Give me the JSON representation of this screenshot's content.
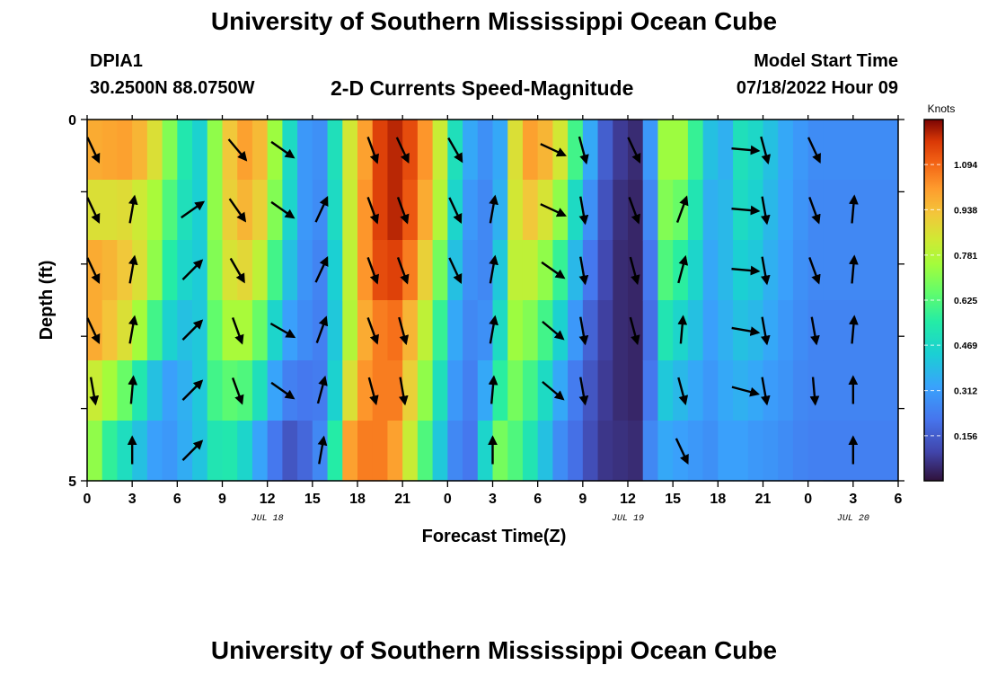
{
  "header": {
    "title": "University of Southern Mississippi Ocean Cube",
    "station": "DPIA1",
    "coords": "30.2500N  88.0750W",
    "subtitle": "2-D Currents Speed-Magnitude",
    "model_start_label": "Model Start Time",
    "model_start_value": "07/18/2022 Hour 09"
  },
  "footer": {
    "title": "University of Southern Mississippi Ocean Cube"
  },
  "chart_data": {
    "type": "heatmap",
    "title": "2-D Currents Speed-Magnitude",
    "xlabel": "Forecast Time(Z)",
    "ylabel": "Depth (ft)",
    "x_tick_labels": [
      "0",
      "3",
      "6",
      "9",
      "12",
      "15",
      "18",
      "21",
      "0",
      "3",
      "6",
      "9",
      "12",
      "15",
      "18",
      "21",
      "0",
      "3",
      "6"
    ],
    "date_labels": [
      {
        "text": "JUL 18",
        "at_tick": 4
      },
      {
        "text": "JUL 19",
        "at_tick": 12
      },
      {
        "text": "JUL 20",
        "at_tick": 17
      }
    ],
    "y_tick_labels": [
      "0",
      "5"
    ],
    "ylim": [
      0,
      5
    ],
    "colorbar": {
      "label": "Knots",
      "ticks": [
        "1.094",
        "0.938",
        "0.781",
        "0.625",
        "0.469",
        "0.312",
        "0.156"
      ],
      "range": [
        0,
        1.25
      ]
    },
    "depth_rows": 6,
    "speed_by_hour": [
      [
        0.98,
        0.86,
        0.98,
        0.98,
        0.82,
        0.72
      ],
      [
        0.99,
        0.86,
        0.96,
        0.93,
        0.75,
        0.57
      ],
      [
        1.0,
        0.87,
        0.92,
        0.86,
        0.66,
        0.49
      ],
      [
        0.96,
        0.83,
        0.86,
        0.75,
        0.53,
        0.4
      ],
      [
        0.86,
        0.76,
        0.72,
        0.6,
        0.4,
        0.32
      ],
      [
        0.7,
        0.62,
        0.55,
        0.45,
        0.32,
        0.3
      ],
      [
        0.53,
        0.5,
        0.46,
        0.4,
        0.36,
        0.35
      ],
      [
        0.45,
        0.44,
        0.43,
        0.42,
        0.42,
        0.41
      ],
      [
        0.72,
        0.72,
        0.7,
        0.65,
        0.6,
        0.52
      ],
      [
        0.92,
        0.9,
        0.85,
        0.76,
        0.64,
        0.53
      ],
      [
        1.0,
        0.96,
        0.88,
        0.76,
        0.62,
        0.46
      ],
      [
        0.95,
        0.9,
        0.8,
        0.66,
        0.5,
        0.33
      ],
      [
        0.74,
        0.7,
        0.6,
        0.46,
        0.33,
        0.22
      ],
      [
        0.48,
        0.46,
        0.4,
        0.32,
        0.24,
        0.14
      ],
      [
        0.3,
        0.3,
        0.29,
        0.27,
        0.22,
        0.18
      ],
      [
        0.28,
        0.27,
        0.25,
        0.24,
        0.23,
        0.26
      ],
      [
        0.5,
        0.48,
        0.44,
        0.42,
        0.45,
        0.55
      ],
      [
        0.84,
        0.82,
        0.8,
        0.78,
        0.86,
        1.0
      ],
      [
        1.0,
        1.02,
        1.02,
        0.98,
        1.02,
        1.06
      ],
      [
        1.16,
        1.16,
        1.14,
        1.06,
        1.06,
        1.06
      ],
      [
        1.2,
        1.2,
        1.16,
        1.08,
        1.06,
        1.0
      ],
      [
        1.14,
        1.12,
        1.06,
        0.96,
        0.9,
        0.82
      ],
      [
        1.02,
        0.98,
        0.9,
        0.8,
        0.72,
        0.62
      ],
      [
        0.82,
        0.78,
        0.68,
        0.58,
        0.5,
        0.42
      ],
      [
        0.5,
        0.46,
        0.4,
        0.34,
        0.3,
        0.26
      ],
      [
        0.34,
        0.3,
        0.28,
        0.26,
        0.24,
        0.22
      ],
      [
        0.28,
        0.26,
        0.26,
        0.28,
        0.34,
        0.46
      ],
      [
        0.34,
        0.36,
        0.42,
        0.48,
        0.56,
        0.68
      ],
      [
        0.86,
        0.84,
        0.8,
        0.74,
        0.68,
        0.62
      ],
      [
        1.0,
        0.92,
        0.8,
        0.7,
        0.6,
        0.52
      ],
      [
        0.96,
        0.85,
        0.72,
        0.6,
        0.48,
        0.4
      ],
      [
        0.84,
        0.72,
        0.58,
        0.45,
        0.34,
        0.27
      ],
      [
        0.6,
        0.48,
        0.38,
        0.3,
        0.23,
        0.2
      ],
      [
        0.34,
        0.28,
        0.22,
        0.17,
        0.14,
        0.12
      ],
      [
        0.16,
        0.13,
        0.11,
        0.09,
        0.08,
        0.07
      ],
      [
        0.08,
        0.06,
        0.05,
        0.05,
        0.05,
        0.06
      ],
      [
        0.05,
        0.04,
        0.04,
        0.04,
        0.04,
        0.05
      ],
      [
        0.3,
        0.26,
        0.22,
        0.2,
        0.22,
        0.26
      ],
      [
        0.74,
        0.7,
        0.62,
        0.52,
        0.42,
        0.34
      ],
      [
        0.74,
        0.66,
        0.56,
        0.46,
        0.38,
        0.32
      ],
      [
        0.58,
        0.52,
        0.46,
        0.4,
        0.34,
        0.3
      ],
      [
        0.4,
        0.36,
        0.34,
        0.32,
        0.3,
        0.28
      ],
      [
        0.36,
        0.38,
        0.38,
        0.36,
        0.34,
        0.32
      ],
      [
        0.5,
        0.48,
        0.44,
        0.4,
        0.36,
        0.32
      ],
      [
        0.47,
        0.45,
        0.42,
        0.38,
        0.34,
        0.3
      ],
      [
        0.4,
        0.38,
        0.36,
        0.34,
        0.31,
        0.29
      ],
      [
        0.34,
        0.33,
        0.32,
        0.3,
        0.29,
        0.27
      ],
      [
        0.3,
        0.29,
        0.28,
        0.27,
        0.26,
        0.25
      ],
      [
        0.27,
        0.26,
        0.26,
        0.25,
        0.25,
        0.24
      ]
    ],
    "vector_columns": [
      {
        "hour": 0.4,
        "dirs": [
          155,
          155,
          155,
          155,
          170,
          null
        ]
      },
      {
        "hour": 3,
        "dirs": [
          null,
          10,
          10,
          10,
          5,
          0
        ]
      },
      {
        "hour": 7,
        "dirs": [
          null,
          55,
          45,
          45,
          45,
          45
        ]
      },
      {
        "hour": 10,
        "dirs": [
          140,
          145,
          150,
          160,
          160,
          null
        ]
      },
      {
        "hour": 13,
        "dirs": [
          125,
          125,
          null,
          120,
          125,
          null
        ]
      },
      {
        "hour": 15.6,
        "dirs": [
          null,
          25,
          25,
          20,
          15,
          10
        ]
      },
      {
        "hour": 19,
        "dirs": [
          160,
          160,
          160,
          160,
          165,
          null
        ]
      },
      {
        "hour": 21,
        "dirs": [
          155,
          160,
          160,
          165,
          170,
          null
        ]
      },
      {
        "hour": 24.5,
        "dirs": [
          150,
          155,
          155,
          null,
          null,
          null
        ]
      },
      {
        "hour": 27,
        "dirs": [
          null,
          10,
          10,
          10,
          5,
          0
        ]
      },
      {
        "hour": 31,
        "dirs": [
          115,
          115,
          125,
          130,
          130,
          null
        ]
      },
      {
        "hour": 33,
        "dirs": [
          165,
          170,
          170,
          170,
          170,
          null
        ]
      },
      {
        "hour": 36.4,
        "dirs": [
          155,
          160,
          165,
          165,
          null,
          null
        ]
      },
      {
        "hour": 39.6,
        "dirs": [
          null,
          20,
          15,
          5,
          165,
          155
        ]
      },
      {
        "hour": 43.8,
        "dirs": [
          95,
          95,
          95,
          100,
          105,
          null
        ]
      },
      {
        "hour": 45.1,
        "dirs": [
          165,
          170,
          170,
          170,
          170,
          null
        ]
      },
      {
        "hour": 48.4,
        "dirs": [
          155,
          160,
          160,
          170,
          175,
          null
        ]
      },
      {
        "hour": 51,
        "dirs": [
          null,
          5,
          5,
          5,
          0,
          0
        ]
      }
    ]
  }
}
